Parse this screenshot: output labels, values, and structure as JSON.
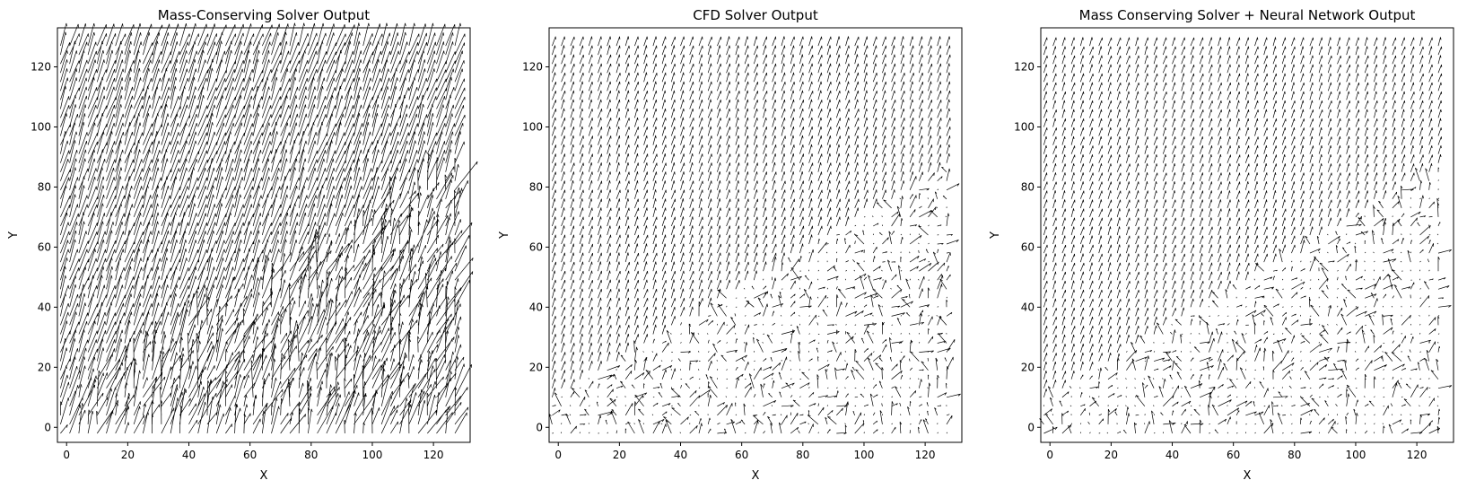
{
  "chart_data": [
    {
      "type": "quiver",
      "title": "Mass-Conserving Solver Output",
      "xlabel": "X",
      "ylabel": "Y",
      "xlim": [
        -3,
        132
      ],
      "ylim": [
        -5,
        133
      ],
      "xticks": [
        0,
        20,
        40,
        60,
        80,
        100,
        120
      ],
      "yticks": [
        0,
        20,
        40,
        60,
        80,
        100,
        120
      ],
      "grid": "128x128 vector field (x 0-127, y 0-127)",
      "dominant_direction": "up-right, steep",
      "turbulence": "high throughout; most chaotic below the diagonal",
      "arrow_color": "#000000"
    },
    {
      "type": "quiver",
      "title": "CFD Solver Output",
      "xlabel": "X",
      "ylabel": "Y",
      "xlim": [
        -3,
        132
      ],
      "ylim": [
        -5,
        133
      ],
      "xticks": [
        0,
        20,
        40,
        60,
        80,
        100,
        120
      ],
      "yticks": [
        0,
        20,
        40,
        60,
        80,
        100,
        120
      ],
      "grid": "128x128 vector field (x 0-127, y 0-127)",
      "dominant_direction": "up-right, steep",
      "turbulence": "uniform in the upper-left region, sparse and chaotic in the lower-right region",
      "arrow_color": "#000000"
    },
    {
      "type": "quiver",
      "title": "Mass Conserving Solver + Neural Network Output",
      "xlabel": "X",
      "ylabel": "Y",
      "xlim": [
        -3,
        132
      ],
      "ylim": [
        -5,
        133
      ],
      "xticks": [
        0,
        20,
        40,
        60,
        80,
        100,
        120
      ],
      "yticks": [
        0,
        20,
        40,
        60,
        80,
        100,
        120
      ],
      "grid": "128x128 vector field (x 0-127, y 0-127)",
      "dominant_direction": "up-right, steep",
      "turbulence": "similar to the CFD output: uniform upper-left, sparse and chaotic lower-right",
      "arrow_color": "#000000"
    }
  ]
}
